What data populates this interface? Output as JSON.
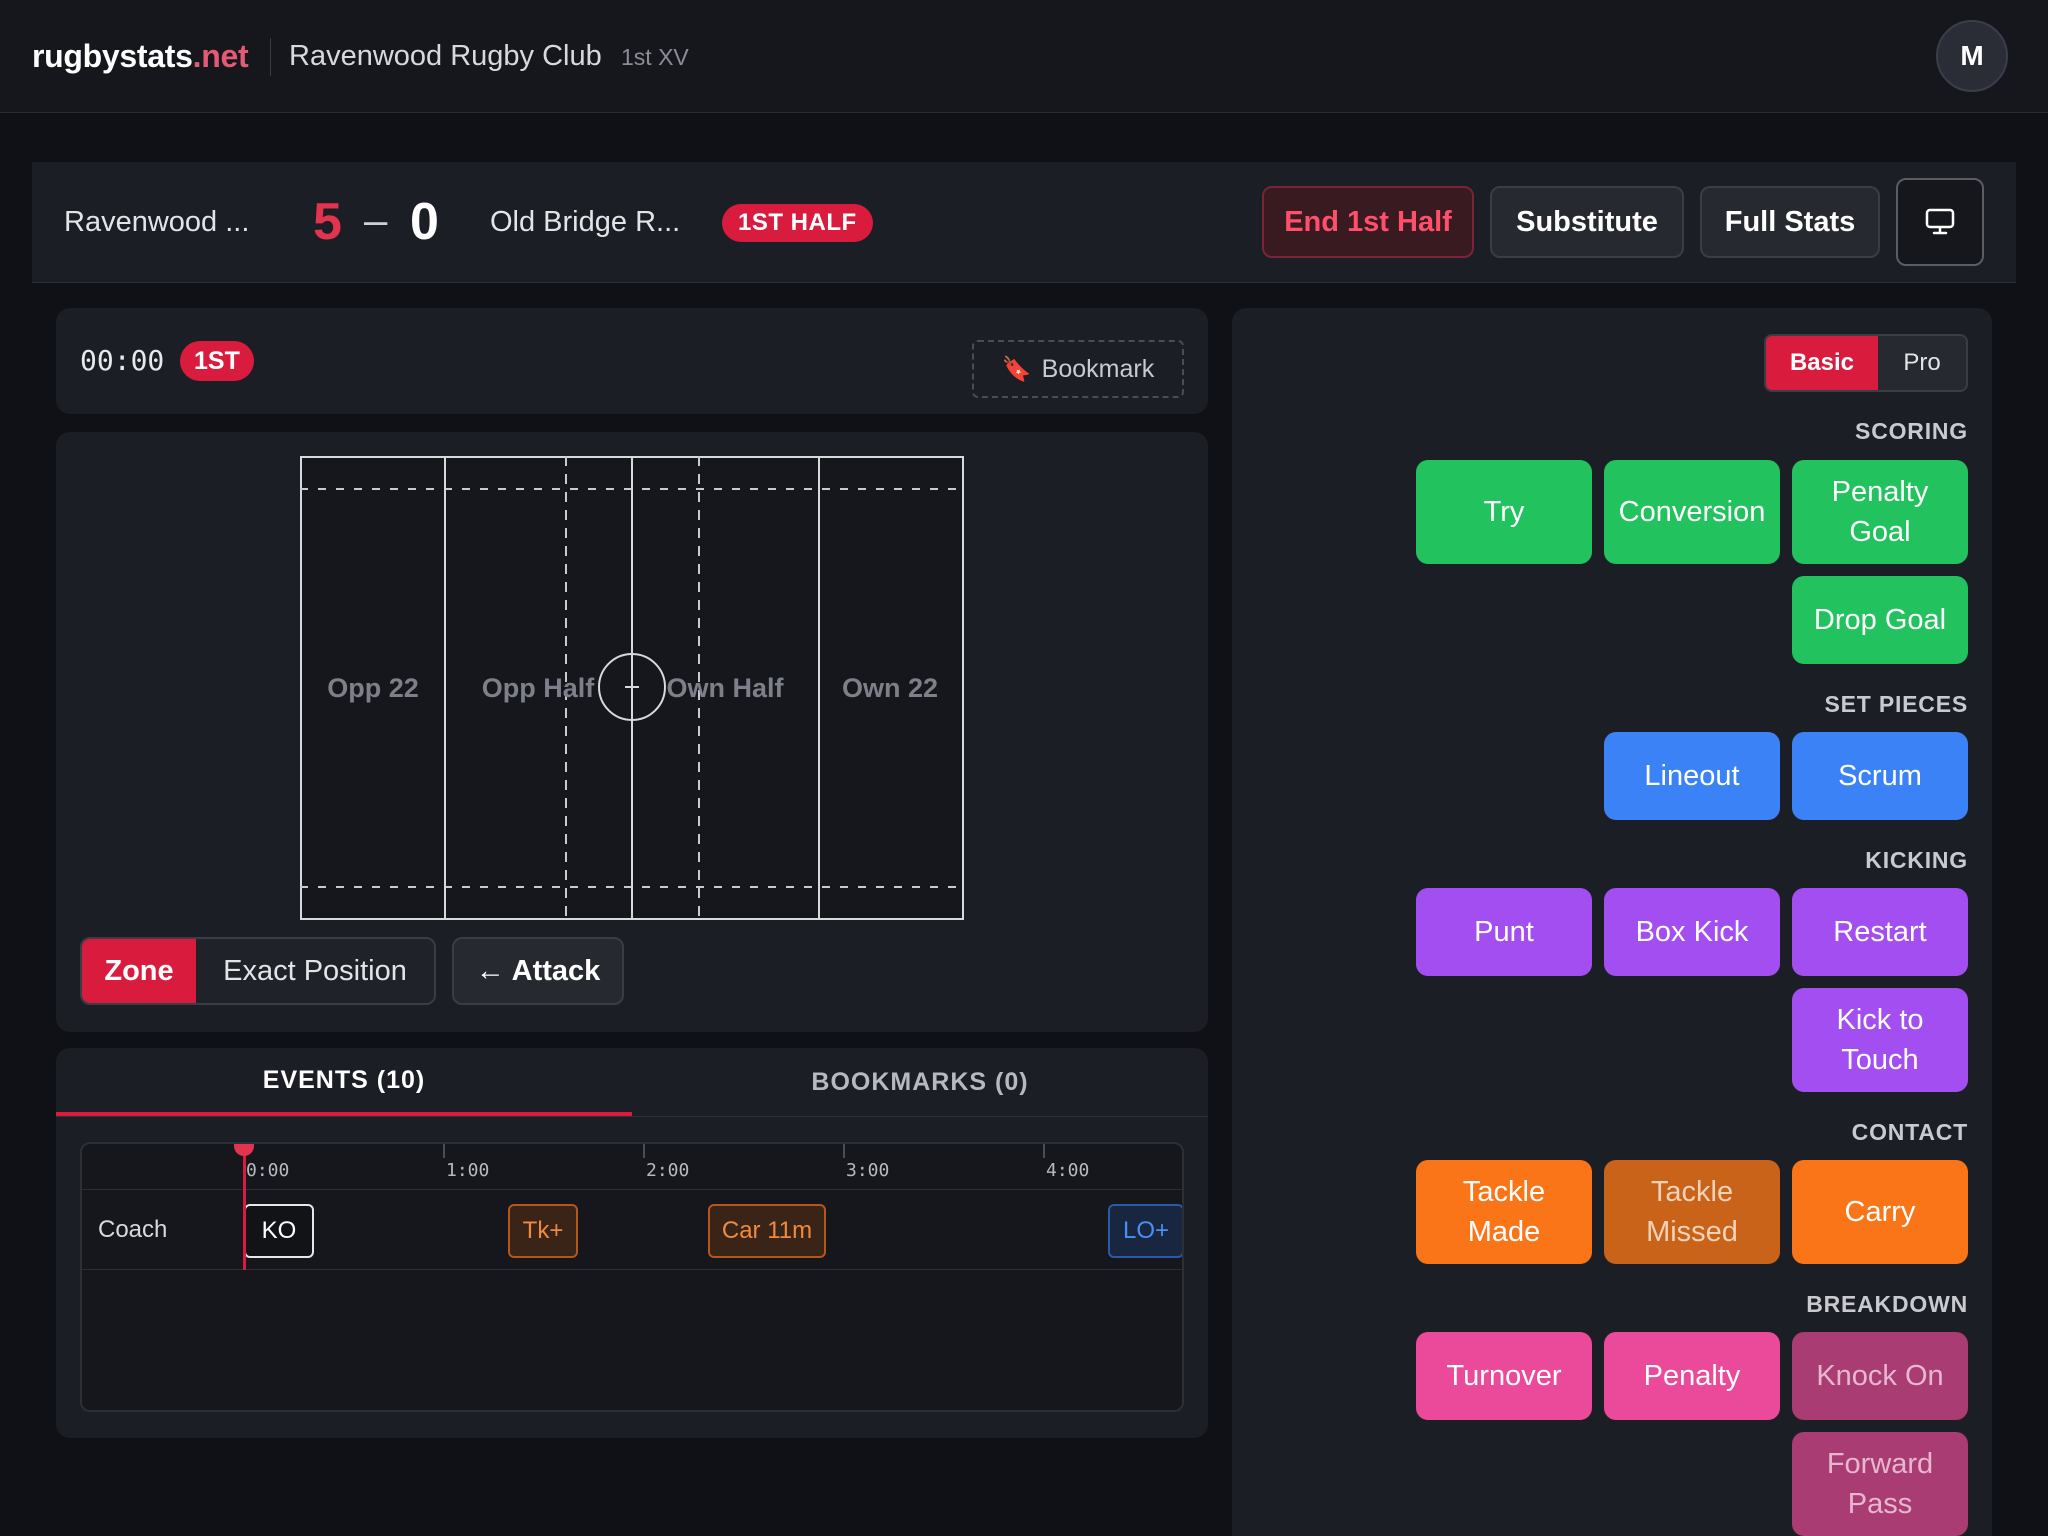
{
  "header": {
    "brand_main": "rugbystats",
    "brand_tld": ".net",
    "club": "Ravenwood Rugby Club",
    "team": "1st XV",
    "avatar_initial": "M"
  },
  "scoreboard": {
    "home_name": "Ravenwood ...",
    "home_score": "5",
    "separator": "–",
    "away_score": "0",
    "away_name": "Old Bridge R...",
    "half_badge": "1ST HALF",
    "end_half_label": "End 1st Half",
    "substitute_label": "Substitute",
    "full_stats_label": "Full Stats"
  },
  "timer": {
    "clock": "00:00",
    "period": "1ST",
    "bookmark_label": "Bookmark"
  },
  "field": {
    "zones": [
      "Opp 22",
      "Opp Half",
      "Own Half",
      "Own 22"
    ],
    "mode_zone": "Zone",
    "mode_exact": "Exact Position",
    "attack_label": "← Attack"
  },
  "events_panel": {
    "tab_events": "EVENTS (10)",
    "tab_bookmarks": "BOOKMARKS (0)",
    "ticks": [
      "0:00",
      "1:00",
      "2:00",
      "3:00",
      "4:00"
    ],
    "row_label": "Coach",
    "events": [
      "KO",
      "Tk+",
      "Car 11m",
      "LO+"
    ]
  },
  "actions": {
    "mode_basic": "Basic",
    "mode_pro": "Pro",
    "scoring_title": "SCORING",
    "scoring": [
      "Try",
      "Conversion",
      "Penalty Goal",
      "Drop Goal"
    ],
    "set_pieces_title": "SET PIECES",
    "set_pieces": [
      "Lineout",
      "Scrum"
    ],
    "kicking_title": "KICKING",
    "kicking": [
      "Punt",
      "Box Kick",
      "Restart",
      "Kick to Touch"
    ],
    "contact_title": "CONTACT",
    "contact": [
      "Tackle Made",
      "Tackle Missed",
      "Carry"
    ],
    "breakdown_title": "BREAKDOWN",
    "breakdown": [
      "Turnover",
      "Penalty",
      "Knock On",
      "Forward Pass"
    ]
  },
  "colors": {
    "accent": "#d91c3e",
    "scoring": "#22c35e",
    "set_pieces": "#3b82f6",
    "kicking": "#a34ef0",
    "contact": "#f97518",
    "breakdown": "#eb4a9b"
  },
  "icons": {
    "bookmark": "bookmark-icon",
    "screen": "monitor-icon"
  }
}
